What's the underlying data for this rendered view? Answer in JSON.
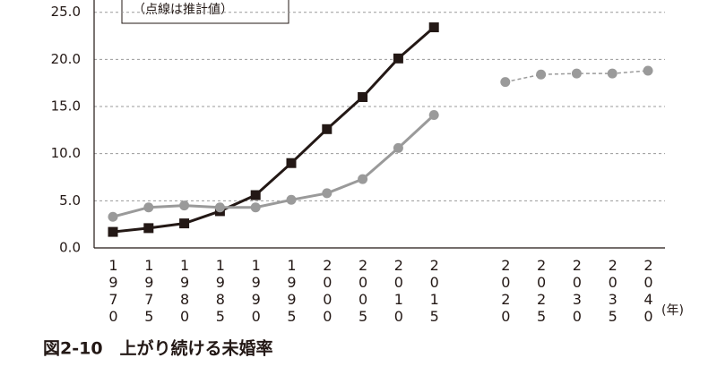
{
  "chart_data": {
    "type": "line",
    "title": "図2-10　上がり続ける未婚率",
    "legend_note": "（点線は推計値）",
    "x_unit": "(年)",
    "categories": [
      "1970",
      "1975",
      "1980",
      "1985",
      "1990",
      "1995",
      "2000",
      "2005",
      "2010",
      "2015",
      null,
      "2020",
      "2025",
      "2030",
      "2035",
      "2040"
    ],
    "series": [
      {
        "color": "#231815",
        "marker": "square",
        "style": "solid",
        "values": [
          1.7,
          2.1,
          2.6,
          3.9,
          5.6,
          9.0,
          12.6,
          16.0,
          20.1,
          23.4,
          null,
          null,
          null,
          null,
          null,
          null
        ]
      },
      {
        "color": "#9a9a9a",
        "marker": "circle",
        "style": "solid",
        "values": [
          3.3,
          4.3,
          4.5,
          4.3,
          4.3,
          5.1,
          5.8,
          7.3,
          10.6,
          14.1,
          null,
          null,
          null,
          null,
          null,
          null
        ]
      },
      {
        "color": "#9a9a9a",
        "marker": "circle",
        "style": "dashed",
        "values": [
          null,
          null,
          null,
          null,
          null,
          null,
          null,
          null,
          null,
          null,
          null,
          17.6,
          18.4,
          18.5,
          18.5,
          18.8
        ]
      }
    ],
    "ylim": [
      0,
      26.3
    ],
    "yticks": [
      {
        "value": 0,
        "label": "0.0"
      },
      {
        "value": 5,
        "label": "5.0"
      },
      {
        "value": 10,
        "label": "10.0"
      },
      {
        "value": 15,
        "label": "15.0"
      },
      {
        "value": 20,
        "label": "20.0"
      },
      {
        "value": 25,
        "label": "25.0"
      }
    ],
    "grid": true
  }
}
